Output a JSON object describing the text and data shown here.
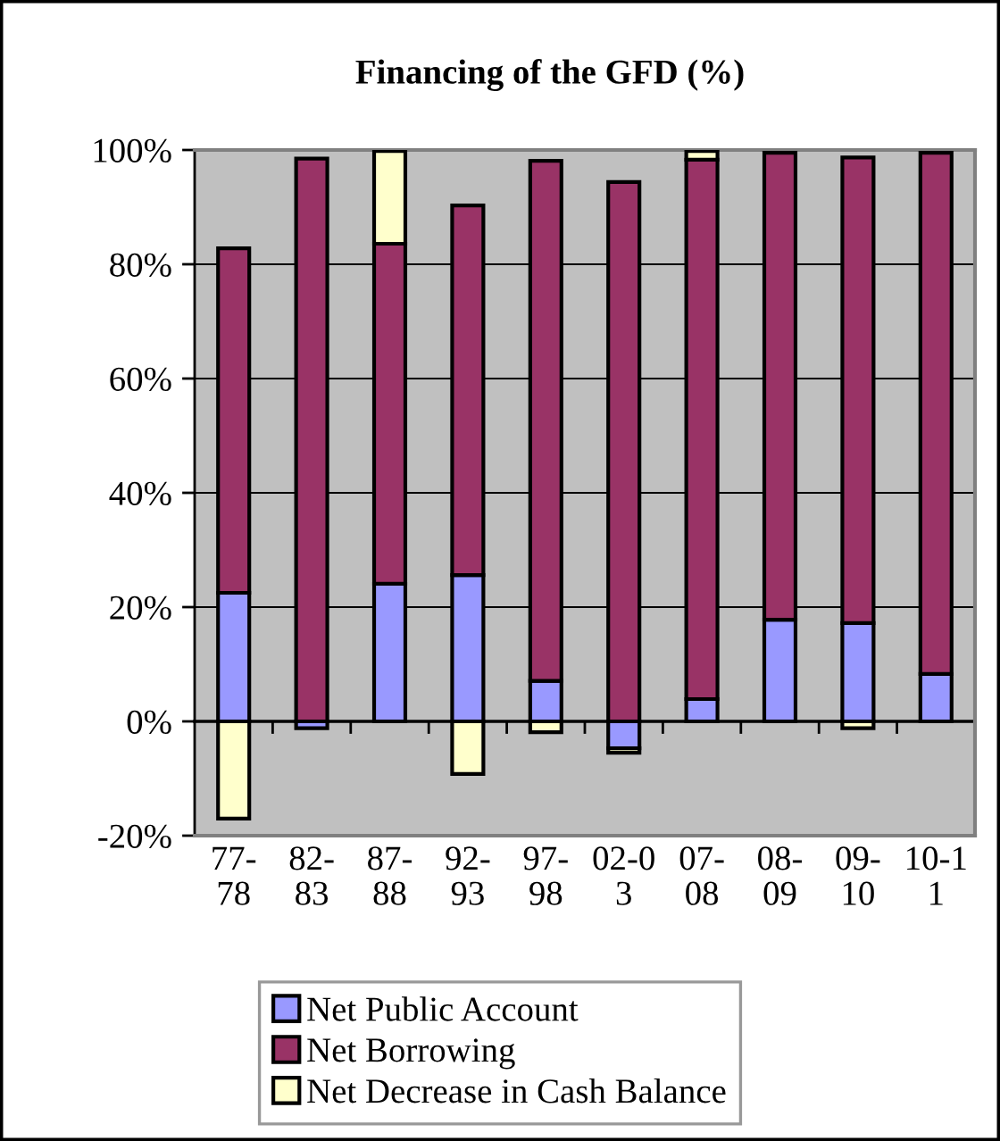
{
  "chart_data": {
    "type": "bar",
    "title": "Financing of the GFD (%)",
    "categories": [
      "77-\n78",
      "82-\n83",
      "87-\n88",
      "92-\n93",
      "97-\n98",
      "02-0\n3",
      "07-\n08",
      "08-\n09",
      "09-\n10",
      "10-1\n1"
    ],
    "series": [
      {
        "name": "Net Public Account",
        "color": "#9999ff",
        "values": [
          22.5,
          -1.2,
          24.1,
          25.6,
          7.1,
          -4.7,
          3.9,
          17.8,
          17.2,
          8.3
        ]
      },
      {
        "name": "Net Borrowing",
        "color": "#993366",
        "values": [
          60.3,
          98.5,
          59.5,
          64.7,
          91.0,
          94.4,
          94.4,
          81.7,
          81.5,
          91.2
        ]
      },
      {
        "name": "Net Decrease in Cash Balance",
        "color": "#ffffcc",
        "values": [
          -17.0,
          null,
          16.2,
          -9.2,
          -1.9,
          -0.8,
          1.5,
          null,
          -1.2,
          null
        ]
      }
    ],
    "stacked": true,
    "ylim": [
      -20,
      100
    ],
    "yticks": [
      {
        "value": -20,
        "label": "-20%"
      },
      {
        "value": 0,
        "label": "0%"
      },
      {
        "value": 20,
        "label": "20%"
      },
      {
        "value": 40,
        "label": "40%"
      },
      {
        "value": 60,
        "label": "60%"
      },
      {
        "value": 80,
        "label": "80%"
      },
      {
        "value": 100,
        "label": "100%"
      }
    ],
    "grid": "y",
    "legend": "bottom"
  }
}
